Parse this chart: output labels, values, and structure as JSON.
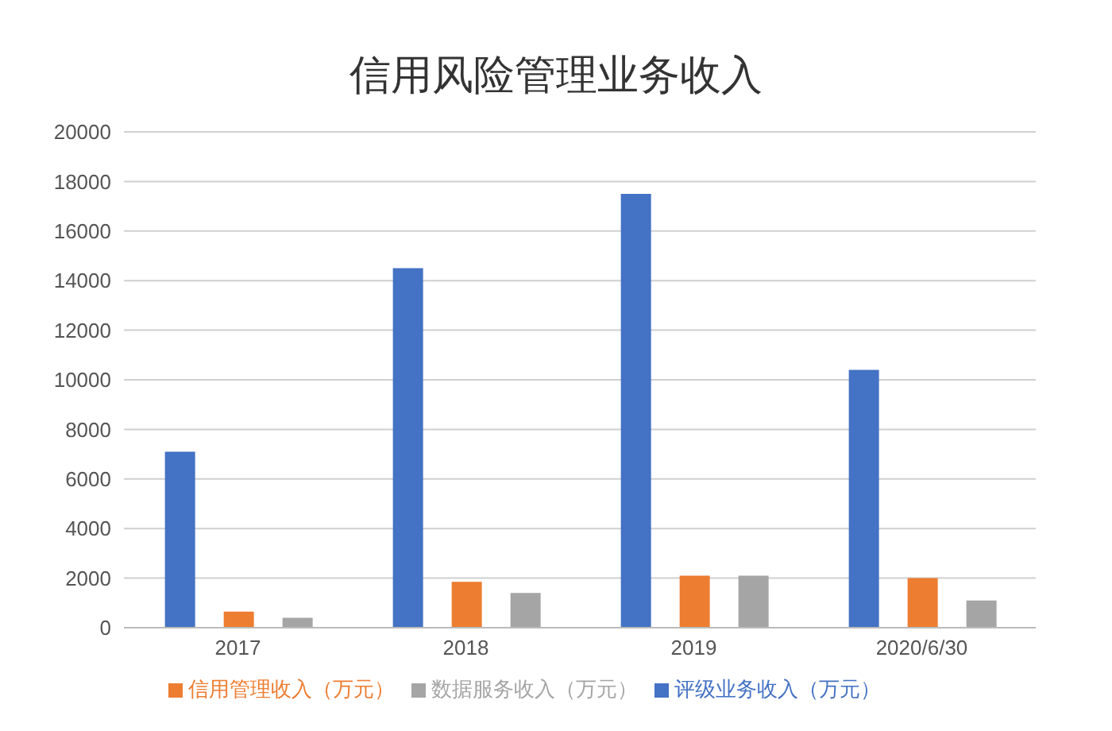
{
  "chart_data": {
    "type": "bar",
    "title": "信用风险管理业务收入",
    "categories": [
      "2017",
      "2018",
      "2019",
      "2020/6/30"
    ],
    "series": [
      {
        "name": "评级业务收入（万元）",
        "color": "#4472c4",
        "values": [
          7100,
          14500,
          17500,
          10400
        ]
      },
      {
        "name": "信用管理收入（万元）",
        "color": "#ed7d31",
        "values": [
          650,
          1850,
          2100,
          2000
        ]
      },
      {
        "name": "数据服务收入（万元）",
        "color": "#a5a5a5",
        "values": [
          400,
          1400,
          2100,
          1100
        ]
      }
    ],
    "ylim": [
      0,
      20000
    ],
    "yticks": [
      0,
      2000,
      4000,
      6000,
      8000,
      10000,
      12000,
      14000,
      16000,
      18000,
      20000
    ],
    "grid": "y",
    "legend": "bottom"
  }
}
